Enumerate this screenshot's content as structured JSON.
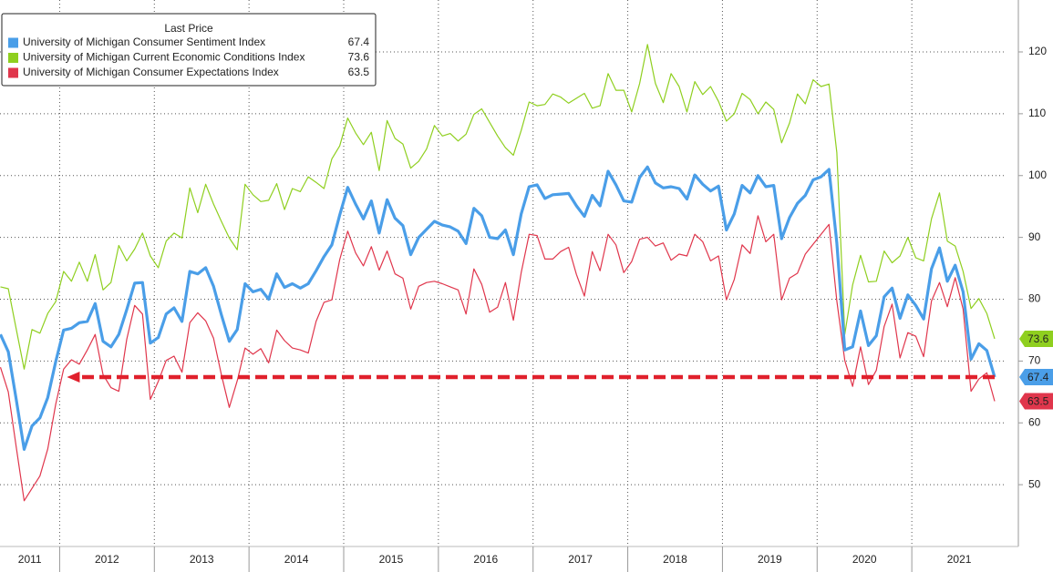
{
  "chart_data": {
    "type": "line",
    "legend_title": "Last Price",
    "xlim": [
      2011.37,
      2022.0
    ],
    "xticks": [
      2011,
      2012,
      2013,
      2014,
      2015,
      2016,
      2017,
      2018,
      2019,
      2020,
      2021
    ],
    "ylim": [
      40,
      128.4
    ],
    "yticks": [
      50,
      60,
      70,
      80,
      90,
      100,
      110,
      120
    ],
    "grid": true,
    "x": [
      2011.375,
      2011.458,
      2011.542,
      2011.625,
      2011.708,
      2011.792,
      2011.875,
      2011.958,
      2012.042,
      2012.125,
      2012.208,
      2012.292,
      2012.375,
      2012.458,
      2012.542,
      2012.625,
      2012.708,
      2012.792,
      2012.875,
      2012.958,
      2013.042,
      2013.125,
      2013.208,
      2013.292,
      2013.375,
      2013.458,
      2013.542,
      2013.625,
      2013.708,
      2013.792,
      2013.875,
      2013.958,
      2014.042,
      2014.125,
      2014.208,
      2014.292,
      2014.375,
      2014.458,
      2014.542,
      2014.625,
      2014.708,
      2014.792,
      2014.875,
      2014.958,
      2015.042,
      2015.125,
      2015.208,
      2015.292,
      2015.375,
      2015.458,
      2015.542,
      2015.625,
      2015.708,
      2015.792,
      2015.875,
      2015.958,
      2016.042,
      2016.125,
      2016.208,
      2016.292,
      2016.375,
      2016.458,
      2016.542,
      2016.625,
      2016.708,
      2016.792,
      2016.875,
      2016.958,
      2017.042,
      2017.125,
      2017.208,
      2017.292,
      2017.375,
      2017.458,
      2017.542,
      2017.625,
      2017.708,
      2017.792,
      2017.875,
      2017.958,
      2018.042,
      2018.125,
      2018.208,
      2018.292,
      2018.375,
      2018.458,
      2018.542,
      2018.625,
      2018.708,
      2018.792,
      2018.875,
      2018.958,
      2019.042,
      2019.125,
      2019.208,
      2019.292,
      2019.375,
      2019.458,
      2019.542,
      2019.625,
      2019.708,
      2019.792,
      2019.875,
      2019.958,
      2020.042,
      2020.125,
      2020.208,
      2020.292,
      2020.375,
      2020.458,
      2020.542,
      2020.625,
      2020.708,
      2020.792,
      2020.875,
      2020.958,
      2021.042,
      2021.125,
      2021.208,
      2021.292,
      2021.375,
      2021.458,
      2021.542,
      2021.625,
      2021.708,
      2021.792,
      2021.875
    ],
    "series": [
      {
        "name": "University of Michigan Current Economic Conditions Index",
        "color": "#8fcf1f",
        "width": 1.2,
        "legend_order": 1,
        "values": [
          82.0,
          81.7,
          75.1,
          68.7,
          75.1,
          74.5,
          77.7,
          79.6,
          84.5,
          82.9,
          86.0,
          82.9,
          87.2,
          81.5,
          82.7,
          88.7,
          86.2,
          88.1,
          90.7,
          87.0,
          85.1,
          89.4,
          90.7,
          89.9,
          98.0,
          94.0,
          98.6,
          95.4,
          92.6,
          89.9,
          88.0,
          98.6,
          96.9,
          95.8,
          96.0,
          98.7,
          94.5,
          97.9,
          97.4,
          99.8,
          98.9,
          97.9,
          102.7,
          104.8,
          109.3,
          106.9,
          105.0,
          107.0,
          100.8,
          108.9,
          106.0,
          105.1,
          101.2,
          102.3,
          104.3,
          108.1,
          106.4,
          106.8,
          105.6,
          106.7,
          109.9,
          110.8,
          108.6,
          106.4,
          104.5,
          103.3,
          107.3,
          111.9,
          111.3,
          111.5,
          113.2,
          112.7,
          111.7,
          112.5,
          113.3,
          110.9,
          111.3,
          116.5,
          113.8,
          113.8,
          110.3,
          114.9,
          121.2,
          114.9,
          111.8,
          116.5,
          114.4,
          110.3,
          115.2,
          113.1,
          114.4,
          112.0,
          108.8,
          110.0,
          113.3,
          112.3,
          110.0,
          111.9,
          110.7,
          105.3,
          108.5,
          113.2,
          111.6,
          115.5,
          114.4,
          114.8,
          103.7,
          74.3,
          82.3,
          87.1,
          82.8,
          82.9,
          87.8,
          85.9,
          87.0,
          90.0,
          86.7,
          86.2,
          93.0,
          97.2,
          89.4,
          88.6,
          84.5,
          78.5,
          80.1,
          77.7,
          73.6
        ]
      },
      {
        "name": "University of Michigan Consumer Expectations Index",
        "color": "#e0364c",
        "width": 1.2,
        "legend_order": 2,
        "values": [
          69.0,
          65.0,
          56.0,
          47.4,
          49.4,
          51.4,
          55.8,
          63.0,
          68.7,
          70.2,
          69.5,
          71.8,
          74.3,
          67.8,
          65.7,
          65.1,
          73.5,
          79.0,
          77.6,
          63.8,
          66.7,
          70.1,
          70.8,
          68.2,
          76.2,
          77.8,
          76.5,
          73.7,
          67.8,
          62.5,
          66.8,
          72.1,
          71.1,
          72.0,
          69.7,
          75.0,
          73.3,
          72.1,
          71.8,
          71.3,
          76.4,
          79.5,
          79.9,
          86.4,
          91.0,
          87.5,
          85.4,
          88.5,
          84.7,
          87.8,
          84.1,
          83.4,
          78.4,
          82.1,
          82.7,
          82.9,
          82.5,
          82.0,
          81.5,
          77.6,
          84.9,
          82.4,
          77.9,
          78.7,
          82.7,
          76.6,
          84.3,
          90.5,
          90.3,
          86.5,
          86.5,
          87.7,
          88.4,
          84.0,
          80.5,
          87.7,
          84.6,
          90.5,
          88.8,
          84.3,
          86.1,
          89.7,
          90.0,
          88.6,
          89.1,
          86.3,
          87.3,
          87.0,
          90.5,
          89.3,
          86.2,
          87.0,
          79.9,
          83.2,
          88.8,
          87.4,
          93.5,
          89.3,
          90.5,
          79.9,
          83.4,
          84.2,
          87.3,
          88.9,
          90.5,
          92.1,
          79.7,
          70.1,
          65.9,
          72.3,
          66.2,
          68.5,
          75.6,
          79.2,
          70.5,
          74.6,
          74.0,
          70.7,
          79.7,
          82.7,
          78.8,
          83.5,
          78.4,
          65.1,
          67.1,
          68.1,
          63.5
        ]
      },
      {
        "name": "University of Michigan Consumer Sentiment Index",
        "color": "#4a9ee8",
        "width": 3.2,
        "legend_order": 0,
        "values": [
          74.3,
          71.5,
          63.7,
          55.7,
          59.5,
          60.8,
          64.1,
          69.9,
          75.0,
          75.3,
          76.2,
          76.4,
          79.3,
          73.2,
          72.3,
          74.3,
          78.3,
          82.6,
          82.7,
          72.9,
          73.8,
          77.6,
          78.6,
          76.4,
          84.5,
          84.1,
          85.1,
          82.1,
          77.5,
          73.2,
          75.1,
          82.5,
          81.2,
          81.6,
          80.0,
          84.1,
          81.9,
          82.5,
          81.8,
          82.5,
          84.6,
          86.9,
          88.8,
          93.6,
          98.1,
          95.4,
          93.0,
          95.9,
          90.7,
          96.1,
          93.1,
          91.9,
          87.2,
          90.0,
          91.3,
          92.6,
          92.0,
          91.7,
          91.0,
          89.0,
          94.7,
          93.5,
          90.0,
          89.8,
          91.2,
          87.2,
          93.8,
          98.2,
          98.5,
          96.3,
          96.9,
          97.0,
          97.1,
          95.1,
          93.4,
          96.8,
          95.1,
          100.7,
          98.5,
          95.9,
          95.7,
          99.7,
          101.4,
          98.8,
          98.0,
          98.2,
          97.9,
          96.2,
          100.1,
          98.6,
          97.5,
          98.3,
          91.2,
          93.8,
          98.4,
          97.2,
          100.0,
          98.2,
          98.4,
          89.8,
          93.2,
          95.5,
          96.8,
          99.3,
          99.8,
          101.0,
          89.1,
          71.8,
          72.3,
          78.1,
          72.5,
          74.1,
          80.4,
          81.8,
          76.9,
          80.7,
          79.0,
          76.8,
          84.9,
          88.3,
          82.9,
          85.5,
          81.2,
          70.3,
          72.8,
          71.7,
          67.4
        ]
      }
    ],
    "reference_series": 2,
    "reference_color": "#e0202c"
  }
}
